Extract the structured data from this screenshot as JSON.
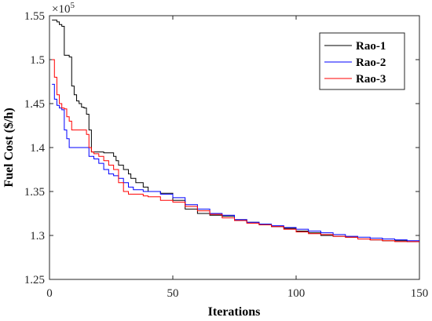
{
  "chart_data": {
    "type": "line",
    "xlabel": "Iterations",
    "ylabel": "Fuel Cost ($/h)",
    "x_ticks": [
      "0",
      "50",
      "100",
      "150"
    ],
    "y_ticks": [
      "1.25",
      "1.3",
      "1.35",
      "1.4",
      "1.45",
      "1.5",
      "1.55"
    ],
    "y_multiplier": "×10",
    "y_multiplier_exp": "5",
    "xlim": [
      0,
      150
    ],
    "ylim": [
      125000,
      155000
    ],
    "legend_position": "top-right",
    "grid": false,
    "series": [
      {
        "name": "Rao-1",
        "color": "#000000",
        "points": [
          [
            1,
            154500
          ],
          [
            3,
            154300
          ],
          [
            4,
            154000
          ],
          [
            5,
            153800
          ],
          [
            6,
            150500
          ],
          [
            8,
            150300
          ],
          [
            9,
            147000
          ],
          [
            10,
            146000
          ],
          [
            11,
            145300
          ],
          [
            12,
            145000
          ],
          [
            13,
            144600
          ],
          [
            14,
            144500
          ],
          [
            15,
            143800
          ],
          [
            16,
            142000
          ],
          [
            17,
            139500
          ],
          [
            20,
            139500
          ],
          [
            22,
            139400
          ],
          [
            25,
            139400
          ],
          [
            26,
            139000
          ],
          [
            27,
            138500
          ],
          [
            28,
            138000
          ],
          [
            30,
            137500
          ],
          [
            32,
            137000
          ],
          [
            33,
            136500
          ],
          [
            35,
            136000
          ],
          [
            37,
            136000
          ],
          [
            38,
            135500
          ],
          [
            40,
            135000
          ],
          [
            45,
            134800
          ],
          [
            50,
            134000
          ],
          [
            55,
            133000
          ],
          [
            60,
            132500
          ],
          [
            65,
            132300
          ],
          [
            70,
            132200
          ],
          [
            75,
            131800
          ],
          [
            80,
            131500
          ],
          [
            85,
            131200
          ],
          [
            90,
            131000
          ],
          [
            95,
            130800
          ],
          [
            100,
            130500
          ],
          [
            105,
            130300
          ],
          [
            110,
            130000
          ],
          [
            115,
            129900
          ],
          [
            120,
            129800
          ],
          [
            125,
            129600
          ],
          [
            130,
            129500
          ],
          [
            135,
            129400
          ],
          [
            140,
            129400
          ],
          [
            145,
            129300
          ],
          [
            150,
            129300
          ]
        ]
      },
      {
        "name": "Rao-2",
        "color": "#0000ff",
        "points": [
          [
            1,
            147200
          ],
          [
            2,
            145500
          ],
          [
            3,
            144800
          ],
          [
            4,
            144500
          ],
          [
            5,
            144300
          ],
          [
            6,
            142000
          ],
          [
            7,
            141000
          ],
          [
            8,
            140000
          ],
          [
            15,
            140000
          ],
          [
            16,
            139000
          ],
          [
            18,
            138700
          ],
          [
            20,
            138200
          ],
          [
            22,
            137500
          ],
          [
            24,
            137000
          ],
          [
            26,
            136800
          ],
          [
            28,
            136500
          ],
          [
            30,
            136000
          ],
          [
            32,
            135500
          ],
          [
            34,
            135200
          ],
          [
            36,
            135200
          ],
          [
            38,
            135000
          ],
          [
            40,
            135000
          ],
          [
            45,
            134700
          ],
          [
            50,
            134300
          ],
          [
            55,
            133500
          ],
          [
            60,
            133000
          ],
          [
            65,
            132500
          ],
          [
            70,
            132300
          ],
          [
            75,
            131800
          ],
          [
            80,
            131500
          ],
          [
            85,
            131300
          ],
          [
            90,
            131100
          ],
          [
            95,
            130900
          ],
          [
            100,
            130700
          ],
          [
            105,
            130500
          ],
          [
            110,
            130300
          ],
          [
            115,
            130100
          ],
          [
            120,
            129900
          ],
          [
            125,
            129800
          ],
          [
            130,
            129700
          ],
          [
            135,
            129600
          ],
          [
            140,
            129500
          ],
          [
            145,
            129400
          ],
          [
            150,
            129400
          ]
        ]
      },
      {
        "name": "Rao-3",
        "color": "#ff0000",
        "points": [
          [
            1,
            150000
          ],
          [
            2,
            148000
          ],
          [
            3,
            146000
          ],
          [
            4,
            145000
          ],
          [
            5,
            144500
          ],
          [
            6,
            144400
          ],
          [
            7,
            143500
          ],
          [
            8,
            143000
          ],
          [
            9,
            142000
          ],
          [
            10,
            142000
          ],
          [
            15,
            141500
          ],
          [
            16,
            140000
          ],
          [
            17,
            139500
          ],
          [
            18,
            139300
          ],
          [
            20,
            139000
          ],
          [
            22,
            138500
          ],
          [
            24,
            138000
          ],
          [
            26,
            137500
          ],
          [
            28,
            136000
          ],
          [
            30,
            135000
          ],
          [
            32,
            134700
          ],
          [
            35,
            134700
          ],
          [
            38,
            134500
          ],
          [
            40,
            134400
          ],
          [
            45,
            134000
          ],
          [
            50,
            133800
          ],
          [
            55,
            133300
          ],
          [
            60,
            132800
          ],
          [
            65,
            132400
          ],
          [
            70,
            132000
          ],
          [
            75,
            131700
          ],
          [
            80,
            131400
          ],
          [
            85,
            131200
          ],
          [
            90,
            131000
          ],
          [
            95,
            130700
          ],
          [
            100,
            130400
          ],
          [
            105,
            130200
          ],
          [
            110,
            130100
          ],
          [
            115,
            129900
          ],
          [
            120,
            129800
          ],
          [
            125,
            129600
          ],
          [
            130,
            129500
          ],
          [
            135,
            129400
          ],
          [
            140,
            129300
          ],
          [
            145,
            129300
          ],
          [
            150,
            129300
          ]
        ]
      }
    ]
  }
}
